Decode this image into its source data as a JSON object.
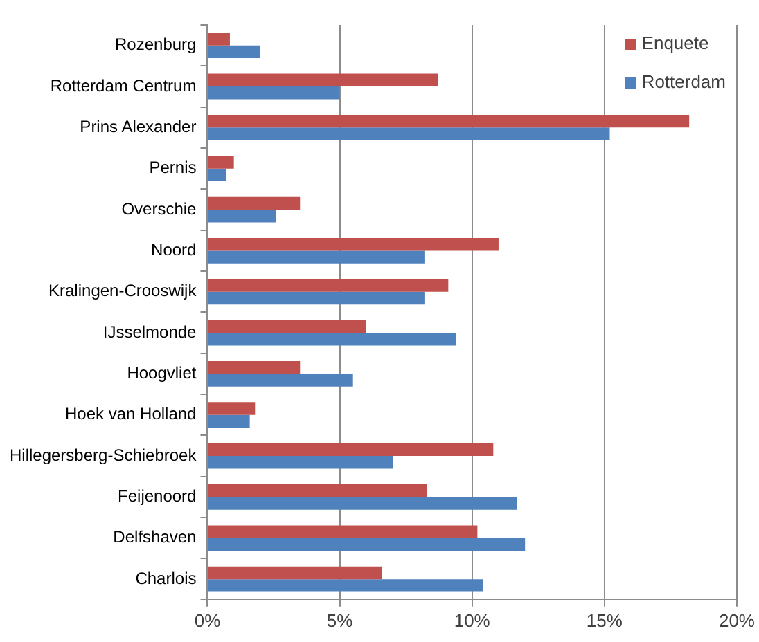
{
  "chart_data": {
    "type": "bar",
    "orientation": "horizontal",
    "categories": [
      "Rozenburg",
      "Rotterdam Centrum",
      "Prins Alexander",
      "Pernis",
      "Overschie",
      "Noord",
      "Kralingen-Crooswijk",
      "IJsselmonde",
      "Hoogvliet",
      "Hoek van Holland",
      "Hillegersberg-Schiebroek",
      "Feijenoord",
      "Delfshaven",
      "Charlois"
    ],
    "series": [
      {
        "name": "Enquete",
        "color": "#c0504d",
        "values": [
          0.85,
          8.7,
          18.2,
          1.0,
          3.5,
          11.0,
          9.1,
          6.0,
          3.5,
          1.8,
          10.8,
          8.3,
          10.2,
          6.6
        ]
      },
      {
        "name": "Rotterdam",
        "color": "#4f81bd",
        "values": [
          2.0,
          5.0,
          15.2,
          0.7,
          2.6,
          8.2,
          8.2,
          9.4,
          5.5,
          1.6,
          7.0,
          11.7,
          12.0,
          10.4
        ]
      }
    ],
    "xlim": [
      0,
      20
    ],
    "xticks": [
      {
        "value": 0,
        "label": "0%"
      },
      {
        "value": 5,
        "label": "5%"
      },
      {
        "value": 10,
        "label": "10%"
      },
      {
        "value": 15,
        "label": "15%"
      },
      {
        "value": 20,
        "label": "20%"
      }
    ],
    "grid": "x",
    "legend": "top right"
  }
}
